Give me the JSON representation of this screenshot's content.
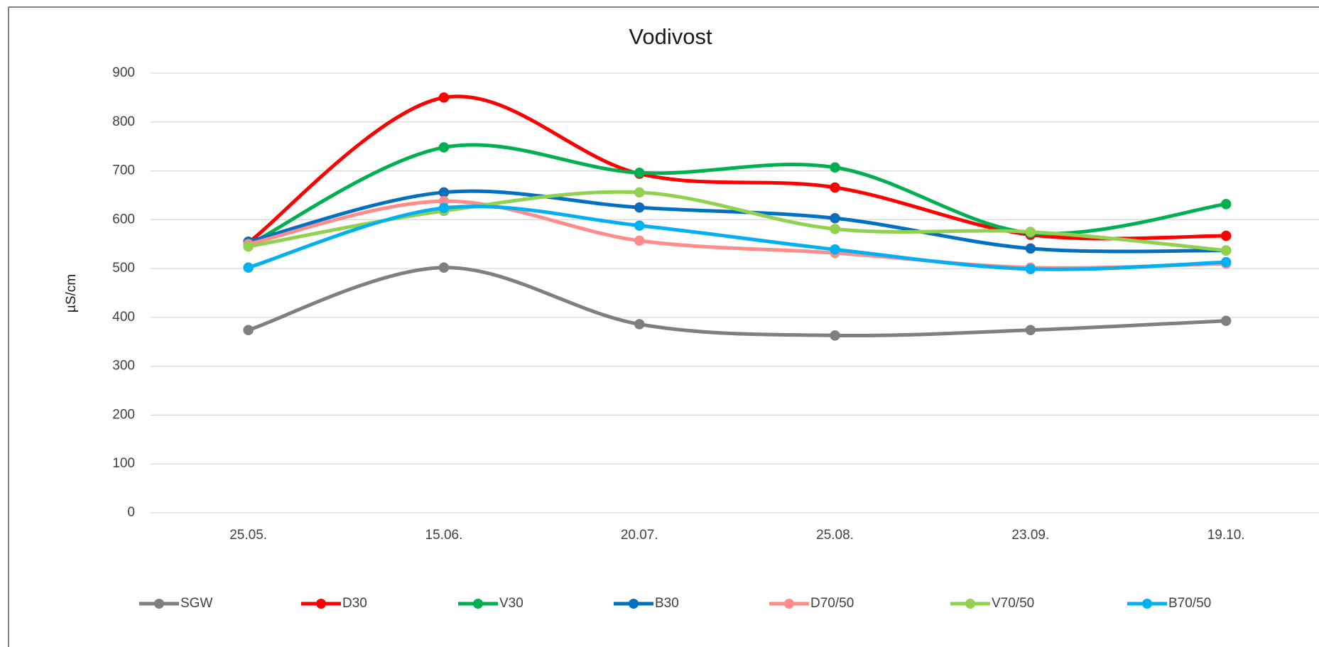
{
  "chart_data": {
    "type": "line",
    "title": "Vodivost",
    "y_label": "µS/cm",
    "categories": [
      "25.05.",
      "15.06.",
      "20.07.",
      "25.08.",
      "23.09.",
      "19.10."
    ],
    "ylim": [
      0,
      900
    ],
    "yticks": [
      0,
      100,
      200,
      300,
      400,
      500,
      600,
      700,
      800,
      900
    ],
    "grid": true,
    "legend": "bottom",
    "smooth": true,
    "series": [
      {
        "name": "SGW",
        "color": "#7f7f7f",
        "values": [
          374,
          502,
          386,
          363,
          374,
          393
        ]
      },
      {
        "name": "D30",
        "color": "#ff0000",
        "values": [
          553,
          850,
          694,
          666,
          569,
          567
        ]
      },
      {
        "name": "V30",
        "color": "#00b050",
        "values": [
          548,
          748,
          696,
          707,
          573,
          632
        ]
      },
      {
        "name": "B30",
        "color": "#0070c0",
        "values": [
          555,
          656,
          625,
          603,
          541,
          537
        ]
      },
      {
        "name": "D70/50",
        "color": "#ff8b8b",
        "values": [
          550,
          638,
          557,
          532,
          502,
          510
        ]
      },
      {
        "name": "V70/50",
        "color": "#92d050",
        "values": [
          545,
          618,
          656,
          581,
          575,
          537
        ]
      },
      {
        "name": "B70/50",
        "color": "#00b0f0",
        "values": [
          502,
          624,
          588,
          539,
          499,
          513
        ]
      }
    ]
  }
}
